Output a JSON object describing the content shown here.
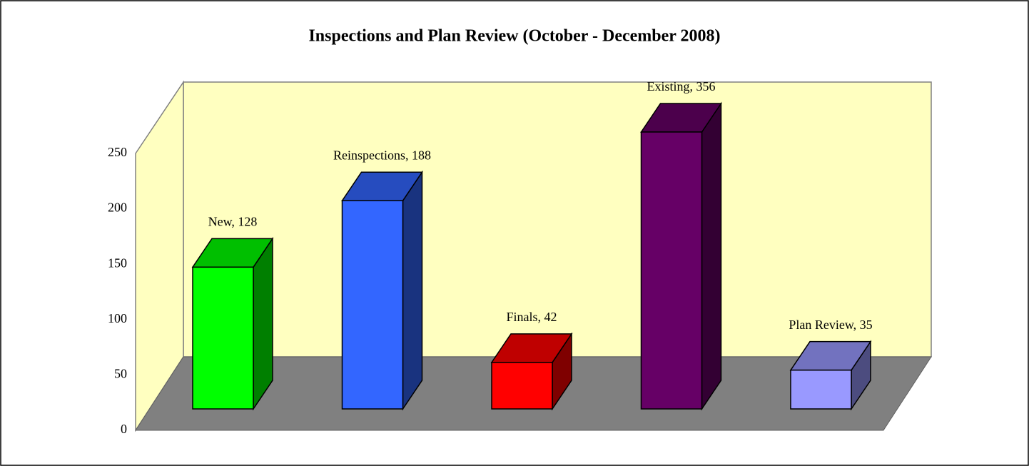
{
  "chart_data": {
    "type": "bar3d",
    "title": "Inspections and Plan Review (October - December 2008)",
    "categories": [
      "New",
      "Reinspections",
      "Finals",
      "Existing",
      "Plan Review"
    ],
    "values": [
      128,
      188,
      42,
      356,
      35
    ],
    "value_labels": [
      "New, 128",
      "Reinspections, 188",
      "Finals, 42",
      "Existing, 356",
      "Plan Review, 35"
    ],
    "colors": [
      "#00ff00",
      "#3366ff",
      "#ff0000",
      "#660066",
      "#9999ff"
    ],
    "ylim": [
      0,
      250
    ],
    "yticks": [
      0,
      50,
      100,
      150,
      200,
      250
    ],
    "grid": false
  }
}
